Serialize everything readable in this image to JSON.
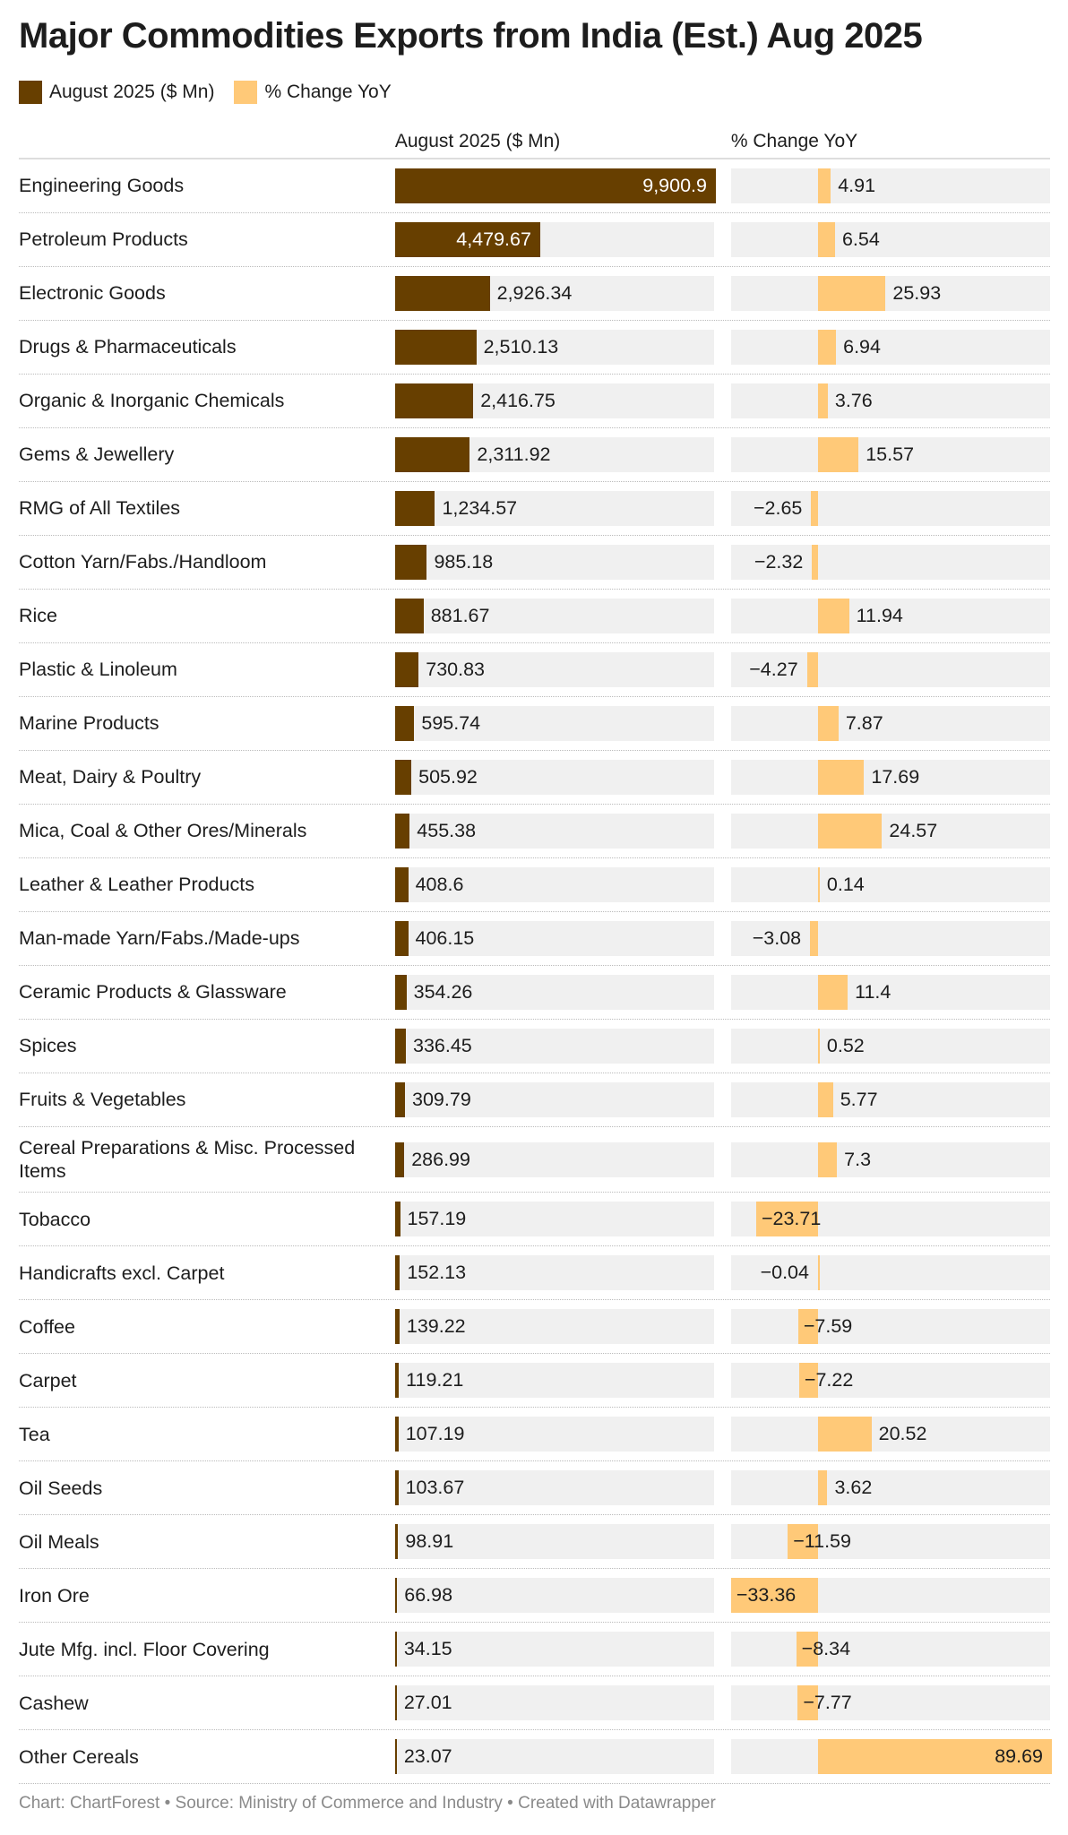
{
  "chart_data": {
    "type": "bar",
    "title": "Major Commodities Exports from India (Est.) Aug 2025",
    "categories": [
      "Engineering Goods",
      "Petroleum Products",
      "Electronic Goods",
      "Drugs & Pharmaceuticals",
      "Organic & Inorganic Chemicals",
      "Gems & Jewellery",
      "RMG of All Textiles",
      "Cotton Yarn/Fabs./Handloom",
      "Rice",
      "Plastic & Linoleum",
      "Marine Products",
      "Meat, Dairy & Poultry",
      "Mica, Coal & Other Ores/Minerals",
      "Leather & Leather Products",
      "Man-made Yarn/Fabs./Made-ups",
      "Ceramic Products & Glassware",
      "Spices",
      "Fruits & Vegetables",
      "Cereal Preparations & Misc. Processed Items",
      "Tobacco",
      "Handicrafts excl. Carpet",
      "Coffee",
      "Carpet",
      "Tea",
      "Oil Seeds",
      "Oil Meals",
      "Iron Ore",
      "Jute Mfg. incl. Floor Covering",
      "Cashew",
      "Other Cereals"
    ],
    "series": [
      {
        "name": "August 2025 ($ Mn)",
        "color": "#673f00",
        "xlim": [
          0,
          9900.9
        ],
        "values": [
          9900.9,
          4479.67,
          2926.34,
          2510.13,
          2416.75,
          2311.92,
          1234.57,
          985.18,
          881.67,
          730.83,
          595.74,
          505.92,
          455.38,
          408.6,
          406.15,
          354.26,
          336.45,
          309.79,
          286.99,
          157.19,
          152.13,
          139.22,
          119.21,
          107.19,
          103.67,
          98.91,
          66.98,
          34.15,
          27.01,
          23.07
        ],
        "value_labels": [
          "9,900.9",
          "4,479.67",
          "2,926.34",
          "2,510.13",
          "2,416.75",
          "2,311.92",
          "1,234.57",
          "985.18",
          "881.67",
          "730.83",
          "595.74",
          "505.92",
          "455.38",
          "408.6",
          "406.15",
          "354.26",
          "336.45",
          "309.79",
          "286.99",
          "157.19",
          "152.13",
          "139.22",
          "119.21",
          "107.19",
          "103.67",
          "98.91",
          "66.98",
          "34.15",
          "27.01",
          "23.07"
        ]
      },
      {
        "name": "% Change YoY",
        "color": "#ffc978",
        "xlim": [
          -33.36,
          89.69
        ],
        "values": [
          4.91,
          6.54,
          25.93,
          6.94,
          3.76,
          15.57,
          -2.65,
          -2.32,
          11.94,
          -4.27,
          7.87,
          17.69,
          24.57,
          0.14,
          -3.08,
          11.4,
          0.52,
          5.77,
          7.3,
          -23.71,
          -0.04,
          -7.59,
          -7.22,
          20.52,
          3.62,
          -11.59,
          -33.36,
          -8.34,
          -7.77,
          89.69
        ],
        "value_labels": [
          "4.91",
          "6.54",
          "25.93",
          "6.94",
          "3.76",
          "15.57",
          "−2.65",
          "−2.32",
          "11.94",
          "−4.27",
          "7.87",
          "17.69",
          "24.57",
          "0.14",
          "−3.08",
          "11.4",
          "0.52",
          "5.77",
          "7.3",
          "−23.71",
          "−0.04",
          "−7.59",
          "−7.22",
          "20.52",
          "3.62",
          "−11.59",
          "−33.36",
          "−8.34",
          "−7.77",
          "89.69"
        ]
      }
    ],
    "source": "Chart: ChartForest • Source: Ministry of Commerce and Industry • Created with Datawrapper"
  }
}
